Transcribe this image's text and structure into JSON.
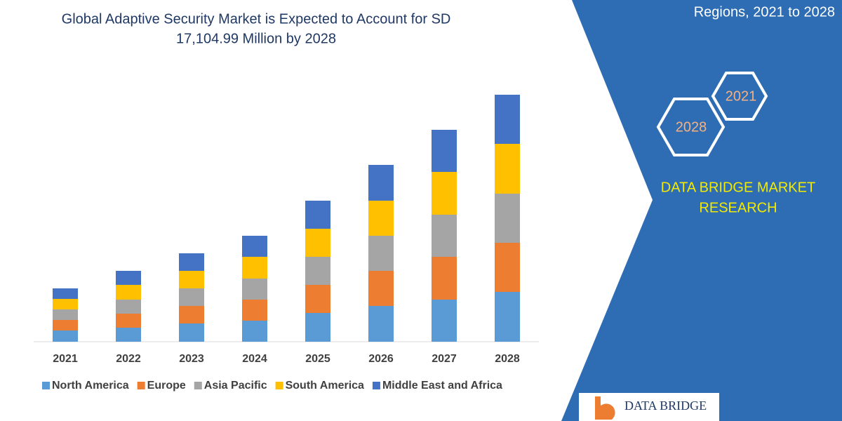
{
  "chart_data": {
    "type": "stacked_bar",
    "title_lines": [
      "Global Adaptive Security Market is Expected to Account for SD",
      "17,104.99 Million by 2028"
    ],
    "categories": [
      "2021",
      "2022",
      "2023",
      "2024",
      "2025",
      "2026",
      "2027",
      "2028"
    ],
    "series": [
      {
        "name": "North America",
        "color": "#5b9bd5",
        "values": [
          16,
          20,
          26,
          30,
          41,
          51,
          60,
          71
        ]
      },
      {
        "name": "Europe",
        "color": "#ed7d31",
        "values": [
          15,
          20,
          25,
          30,
          40,
          50,
          61,
          70
        ]
      },
      {
        "name": "Asia Pacific",
        "color": "#a5a5a5",
        "values": [
          15,
          20,
          25,
          30,
          40,
          50,
          60,
          70
        ]
      },
      {
        "name": "South America",
        "color": "#ffc000",
        "values": [
          15,
          21,
          25,
          31,
          40,
          50,
          61,
          71
        ]
      },
      {
        "name": "Middle East and Africa",
        "color": "#4472c4",
        "values": [
          15,
          20,
          25,
          30,
          40,
          51,
          60,
          70
        ]
      }
    ],
    "ylim": [
      0,
      352
    ],
    "legend": "bottom"
  },
  "panel": {
    "subtitle": "Regions, 2021 to 2028",
    "hex_labels": [
      "2021",
      "2028"
    ],
    "brand_lines": [
      "DATA BRIDGE MARKET",
      "RESEARCH"
    ],
    "logo_text": "DATA BRIDGE"
  }
}
